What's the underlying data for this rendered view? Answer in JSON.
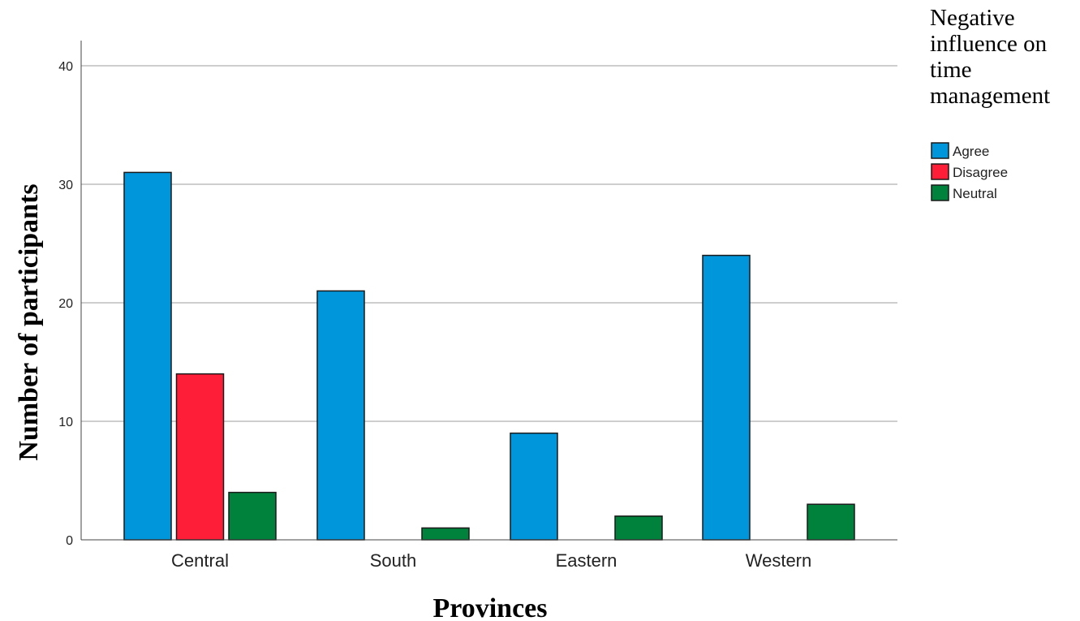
{
  "chart_data": {
    "type": "bar",
    "title": "",
    "xlabel": "Provinces",
    "ylabel": "Number of participants",
    "categories": [
      "Central",
      "South",
      "Eastern",
      "Western"
    ],
    "series": [
      {
        "name": "Agree",
        "values": [
          31,
          21,
          9,
          24
        ],
        "color": "#0096DC"
      },
      {
        "name": "Disagree",
        "values": [
          14,
          null,
          null,
          null
        ],
        "color": "#FF1E37"
      },
      {
        "name": "Neutral",
        "values": [
          4,
          1,
          2,
          3
        ],
        "color": "#00823C"
      }
    ],
    "ylim": [
      0,
      42
    ],
    "yticks": [
      0,
      10,
      20,
      30,
      40
    ],
    "grid": true,
    "legend": {
      "title_lines": [
        "Negative",
        "influence on",
        "time",
        "management"
      ],
      "placement": "top-right"
    }
  }
}
